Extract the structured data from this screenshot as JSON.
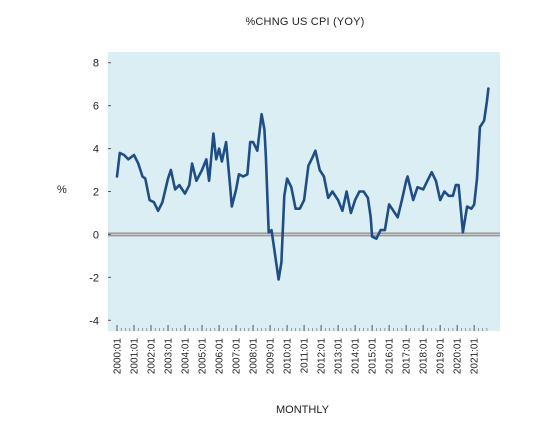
{
  "chart_data": {
    "type": "line",
    "title": "%CHNG US CPI (YOY)",
    "xlabel": "MONTHLY",
    "ylabel": "%",
    "ylim": [
      -4.5,
      8.5
    ],
    "yticks": [
      -4,
      -2,
      0,
      2,
      4,
      6,
      8
    ],
    "xtick_labels": [
      "2000:01",
      "2001:01",
      "2002:01",
      "2003:01",
      "2004:01",
      "2005:01",
      "2006:01",
      "2007:01",
      "2008:01",
      "2009:01",
      "2010:01",
      "2011:01",
      "2012:01",
      "2013:01",
      "2014:01",
      "2015:01",
      "2016:01",
      "2017:01",
      "2018:01",
      "2019:01",
      "2020:01",
      "2021:01"
    ],
    "reference_line": 0,
    "grid": false,
    "background_color": "#daeef4",
    "line_color": "#1f4e86",
    "series": [
      {
        "x": [
          "2000:01",
          "2000:03",
          "2000:06",
          "2000:09",
          "2001:01",
          "2001:04",
          "2001:07",
          "2001:09",
          "2001:12",
          "2002:03",
          "2002:06",
          "2002:09",
          "2003:01",
          "2003:03",
          "2003:06",
          "2003:09",
          "2004:01",
          "2004:04",
          "2004:06",
          "2004:09",
          "2005:01",
          "2005:04",
          "2005:06",
          "2005:09",
          "2005:11",
          "2006:01",
          "2006:03",
          "2006:06",
          "2006:09",
          "2006:10",
          "2007:01",
          "2007:03",
          "2007:06",
          "2007:09",
          "2007:11",
          "2008:01",
          "2008:04",
          "2008:07",
          "2008:09",
          "2008:10",
          "2008:12",
          "2009:02",
          "2009:04",
          "2009:07",
          "2009:09",
          "2009:11",
          "2010:01",
          "2010:04",
          "2010:07",
          "2010:10",
          "2011:01",
          "2011:04",
          "2011:07",
          "2011:09",
          "2011:12",
          "2012:03",
          "2012:06",
          "2012:09",
          "2013:01",
          "2013:04",
          "2013:07",
          "2013:10",
          "2014:01",
          "2014:04",
          "2014:07",
          "2014:10",
          "2014:12",
          "2015:01",
          "2015:04",
          "2015:07",
          "2015:10",
          "2016:01",
          "2016:04",
          "2016:07",
          "2016:10",
          "2017:01",
          "2017:02",
          "2017:06",
          "2017:09",
          "2018:01",
          "2018:04",
          "2018:07",
          "2018:10",
          "2019:01",
          "2019:04",
          "2019:07",
          "2019:10",
          "2019:12",
          "2020:02",
          "2020:05",
          "2020:08",
          "2020:11",
          "2021:01",
          "2021:03",
          "2021:05",
          "2021:08",
          "2021:10",
          "2021:11"
        ],
        "values": [
          2.7,
          3.8,
          3.7,
          3.5,
          3.7,
          3.3,
          2.7,
          2.6,
          1.6,
          1.5,
          1.1,
          1.5,
          2.6,
          3.0,
          2.1,
          2.3,
          1.9,
          2.3,
          3.3,
          2.5,
          3.0,
          3.5,
          2.5,
          4.7,
          3.5,
          4.0,
          3.4,
          4.3,
          2.1,
          1.3,
          2.1,
          2.8,
          2.7,
          2.8,
          4.3,
          4.3,
          3.9,
          5.6,
          4.9,
          3.7,
          0.1,
          0.2,
          -0.7,
          -2.1,
          -1.3,
          1.8,
          2.6,
          2.2,
          1.2,
          1.2,
          1.6,
          3.2,
          3.6,
          3.9,
          3.0,
          2.7,
          1.7,
          2.0,
          1.6,
          1.1,
          2.0,
          1.0,
          1.6,
          2.0,
          2.0,
          1.7,
          0.8,
          -0.1,
          -0.2,
          0.2,
          0.2,
          1.4,
          1.1,
          0.8,
          1.6,
          2.5,
          2.7,
          1.6,
          2.2,
          2.1,
          2.5,
          2.9,
          2.5,
          1.6,
          2.0,
          1.8,
          1.8,
          2.3,
          2.3,
          0.1,
          1.3,
          1.2,
          1.4,
          2.6,
          5.0,
          5.3,
          6.2,
          6.8
        ]
      }
    ]
  }
}
